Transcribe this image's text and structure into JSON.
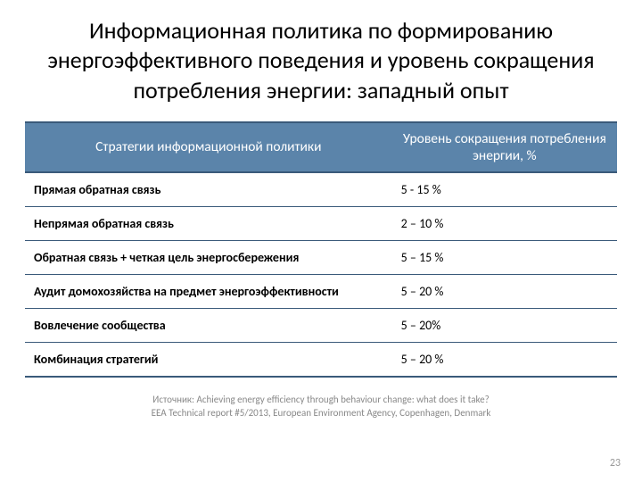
{
  "title": "Информационная политика по формированию энергоэффективного поведения и уровень сокращения потребления энергии: западный опыт",
  "table": {
    "header": {
      "col1": "Стратегии информационной политики",
      "col2": "Уровень сокращения потребления энергии, %"
    },
    "rows": [
      {
        "strategy": "Прямая обратная связь",
        "value": "5 - 15 %"
      },
      {
        "strategy": "Непрямая обратная связь",
        "value": "2 – 10 %"
      },
      {
        "strategy": "Обратная связь + четкая цель энергосбережения",
        "value": "5 – 15 %"
      },
      {
        "strategy": "Аудит домохозяйства на предмет энергоэффективности",
        "value": "5 – 20 %"
      },
      {
        "strategy": "Вовлечение сообщества",
        "value": "5 – 20%"
      },
      {
        "strategy": "Комбинация стратегий",
        "value": "5 – 20 %"
      }
    ]
  },
  "source": {
    "line1": "Источник: Achieving energy efficiency through behaviour change: what does it take?",
    "line2": "EEA Technical report #5/2013, European Environment Agency, Copenhagen, Denmark"
  },
  "pageNumber": "23",
  "colors": {
    "header_bg": "#5b84aa",
    "header_text": "#ffffff",
    "border": "#3a5a7a",
    "body_text": "#000000",
    "source_text": "#888888",
    "pagenum_text": "#999999",
    "background": "#ffffff"
  }
}
